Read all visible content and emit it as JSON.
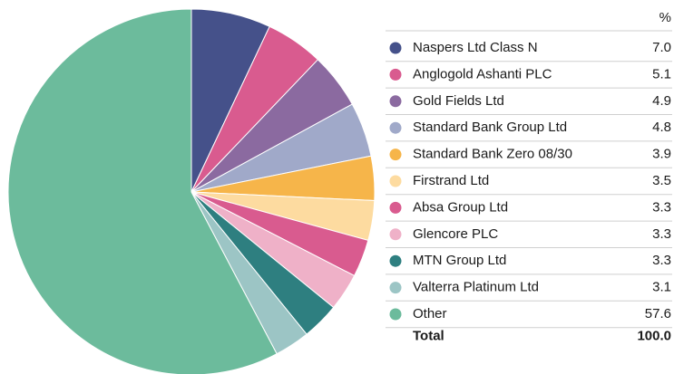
{
  "chart_data": {
    "type": "pie",
    "value_header": "%",
    "categories": [
      "Naspers Ltd Class N",
      "Anglogold Ashanti PLC",
      "Gold Fields Ltd",
      "Standard Bank Group Ltd",
      "Standard Bank Zero 08/30",
      "Firstrand Ltd",
      "Absa Group Ltd",
      "Glencore PLC",
      "MTN Group Ltd",
      "Valterra Platinum Ltd",
      "Other"
    ],
    "values": [
      7.0,
      5.1,
      4.9,
      4.8,
      3.9,
      3.5,
      3.3,
      3.3,
      3.3,
      3.1,
      57.6
    ],
    "value_labels": [
      "7.0",
      "5.1",
      "4.9",
      "4.8",
      "3.9",
      "3.5",
      "3.3",
      "3.3",
      "3.3",
      "3.1",
      "57.6"
    ],
    "colors": [
      "#45518a",
      "#d95b8f",
      "#8b6aa0",
      "#a0a9c9",
      "#f6b54a",
      "#fddba0",
      "#d95b8f",
      "#efb1c8",
      "#2e7f80",
      "#9cc5c5",
      "#6cbb9c"
    ],
    "total": {
      "label": "Total",
      "value": 100.0,
      "value_label": "100.0"
    }
  }
}
